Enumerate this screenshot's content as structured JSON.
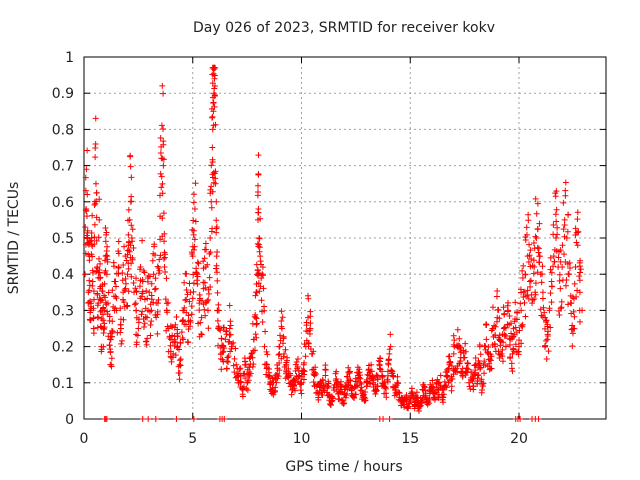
{
  "chart_data": {
    "type": "scatter",
    "title": "Day 026 of 2023, SRMTID for receiver kokv",
    "xlabel": "GPS time / hours",
    "ylabel": "SRMTID / TECUs",
    "xlim": [
      0,
      24
    ],
    "ylim": [
      0,
      1
    ],
    "xticks": [
      0,
      5,
      10,
      15,
      20
    ],
    "xtick_labels": [
      "0",
      "5",
      "10",
      "15",
      "20"
    ],
    "yticks": [
      0,
      0.1,
      0.2,
      0.3,
      0.4,
      0.5,
      0.6,
      0.7,
      0.8,
      0.9,
      1
    ],
    "ytick_labels": [
      "0",
      "0.1",
      "0.2",
      "0.3",
      "0.4",
      "0.5",
      "0.6",
      "0.7",
      "0.8",
      "0.9",
      "1"
    ],
    "grid": true,
    "marker": "+",
    "marker_color": "#ff0000",
    "series": [
      {
        "name": "SRMTID",
        "points": [
          [
            0.05,
            0.4
          ],
          [
            0.1,
            0.58
          ],
          [
            0.15,
            0.62
          ],
          [
            0.2,
            0.35
          ],
          [
            0.25,
            0.45
          ],
          [
            0.3,
            0.3
          ],
          [
            0.35,
            0.5
          ],
          [
            0.4,
            0.38
          ],
          [
            0.45,
            0.25
          ],
          [
            0.5,
            0.6
          ],
          [
            0.55,
            0.65
          ],
          [
            0.6,
            0.42
          ],
          [
            0.65,
            0.28
          ],
          [
            0.7,
            0.55
          ],
          [
            0.75,
            0.33
          ],
          [
            0.8,
            0.2
          ],
          [
            0.85,
            0.37
          ],
          [
            0.9,
            0.25
          ],
          [
            0.95,
            0.3
          ],
          [
            1.0,
            0.45
          ],
          [
            1.05,
            0.4
          ],
          [
            1.1,
            0.32
          ],
          [
            1.2,
            0.22
          ],
          [
            1.25,
            0.15
          ],
          [
            1.3,
            0.27
          ],
          [
            1.4,
            0.38
          ],
          [
            1.5,
            0.3
          ],
          [
            1.6,
            0.42
          ],
          [
            1.7,
            0.25
          ],
          [
            1.8,
            0.35
          ],
          [
            1.9,
            0.45
          ],
          [
            2.0,
            0.4
          ],
          [
            2.05,
            0.48
          ],
          [
            2.1,
            0.55
          ],
          [
            2.15,
            0.6
          ],
          [
            2.2,
            0.5
          ],
          [
            2.3,
            0.35
          ],
          [
            2.4,
            0.3
          ],
          [
            2.5,
            0.25
          ],
          [
            2.6,
            0.42
          ],
          [
            2.7,
            0.38
          ],
          [
            2.8,
            0.33
          ],
          [
            2.9,
            0.28
          ],
          [
            3.0,
            0.35
          ],
          [
            3.1,
            0.3
          ],
          [
            3.2,
            0.4
          ],
          [
            3.3,
            0.36
          ],
          [
            3.4,
            0.32
          ],
          [
            3.5,
            0.56
          ],
          [
            3.55,
            0.64
          ],
          [
            3.6,
            0.72
          ],
          [
            3.65,
            0.7
          ],
          [
            3.7,
            0.42
          ],
          [
            3.8,
            0.3
          ],
          [
            3.9,
            0.25
          ],
          [
            4.0,
            0.22
          ],
          [
            4.1,
            0.18
          ],
          [
            4.2,
            0.26
          ],
          [
            4.3,
            0.2
          ],
          [
            4.4,
            0.15
          ],
          [
            4.5,
            0.24
          ],
          [
            4.6,
            0.3
          ],
          [
            4.7,
            0.33
          ],
          [
            4.8,
            0.27
          ],
          [
            4.9,
            0.35
          ],
          [
            5.0,
            0.45
          ],
          [
            5.05,
            0.52
          ],
          [
            5.1,
            0.58
          ],
          [
            5.2,
            0.4
          ],
          [
            5.3,
            0.32
          ],
          [
            5.4,
            0.28
          ],
          [
            5.5,
            0.36
          ],
          [
            5.6,
            0.42
          ],
          [
            5.7,
            0.3
          ],
          [
            5.8,
            0.5
          ],
          [
            5.85,
            0.6
          ],
          [
            5.9,
            0.75
          ],
          [
            5.92,
            0.8
          ],
          [
            5.95,
            0.85
          ],
          [
            5.97,
            0.9
          ],
          [
            6.0,
            0.94
          ],
          [
            6.02,
            0.92
          ],
          [
            6.05,
            0.65
          ],
          [
            6.1,
            0.45
          ],
          [
            6.15,
            0.3
          ],
          [
            6.2,
            0.25
          ],
          [
            6.3,
            0.18
          ],
          [
            6.4,
            0.2
          ],
          [
            6.5,
            0.22
          ],
          [
            6.6,
            0.17
          ],
          [
            6.7,
            0.25
          ],
          [
            6.8,
            0.2
          ],
          [
            7.0,
            0.15
          ],
          [
            7.1,
            0.1
          ],
          [
            7.2,
            0.12
          ],
          [
            7.3,
            0.08
          ],
          [
            7.4,
            0.15
          ],
          [
            7.5,
            0.1
          ],
          [
            7.6,
            0.13
          ],
          [
            7.7,
            0.18
          ],
          [
            7.8,
            0.22
          ],
          [
            7.9,
            0.28
          ],
          [
            7.95,
            0.35
          ],
          [
            8.0,
            0.55
          ],
          [
            8.02,
            0.58
          ],
          [
            8.05,
            0.5
          ],
          [
            8.1,
            0.45
          ],
          [
            8.2,
            0.4
          ],
          [
            8.3,
            0.2
          ],
          [
            8.4,
            0.15
          ],
          [
            8.5,
            0.12
          ],
          [
            8.6,
            0.1
          ],
          [
            8.7,
            0.08
          ],
          [
            8.8,
            0.11
          ],
          [
            8.9,
            0.14
          ],
          [
            9.0,
            0.2
          ],
          [
            9.1,
            0.25
          ],
          [
            9.2,
            0.18
          ],
          [
            9.3,
            0.15
          ],
          [
            9.4,
            0.12
          ],
          [
            9.5,
            0.1
          ],
          [
            9.6,
            0.08
          ],
          [
            9.7,
            0.11
          ],
          [
            9.8,
            0.14
          ],
          [
            9.9,
            0.12
          ],
          [
            10.0,
            0.1
          ],
          [
            10.1,
            0.15
          ],
          [
            10.2,
            0.2
          ],
          [
            10.3,
            0.28
          ],
          [
            10.4,
            0.25
          ],
          [
            10.5,
            0.18
          ],
          [
            10.6,
            0.12
          ],
          [
            10.7,
            0.09
          ],
          [
            10.8,
            0.07
          ],
          [
            10.9,
            0.1
          ],
          [
            11.0,
            0.08
          ],
          [
            11.1,
            0.12
          ],
          [
            11.2,
            0.09
          ],
          [
            11.3,
            0.06
          ],
          [
            11.4,
            0.05
          ],
          [
            11.5,
            0.08
          ],
          [
            11.6,
            0.11
          ],
          [
            11.7,
            0.07
          ],
          [
            11.8,
            0.09
          ],
          [
            11.9,
            0.05
          ],
          [
            12.0,
            0.07
          ],
          [
            12.1,
            0.1
          ],
          [
            12.2,
            0.13
          ],
          [
            12.3,
            0.08
          ],
          [
            12.4,
            0.06
          ],
          [
            12.5,
            0.09
          ],
          [
            12.6,
            0.12
          ],
          [
            12.7,
            0.1
          ],
          [
            12.8,
            0.07
          ],
          [
            12.9,
            0.05
          ],
          [
            13.0,
            0.09
          ],
          [
            13.1,
            0.12
          ],
          [
            13.2,
            0.15
          ],
          [
            13.3,
            0.1
          ],
          [
            13.4,
            0.08
          ],
          [
            13.5,
            0.11
          ],
          [
            13.6,
            0.14
          ],
          [
            13.7,
            0.12
          ],
          [
            13.8,
            0.09
          ],
          [
            13.9,
            0.06
          ],
          [
            14.0,
            0.15
          ],
          [
            14.1,
            0.2
          ],
          [
            14.2,
            0.12
          ],
          [
            14.3,
            0.08
          ],
          [
            14.4,
            0.1
          ],
          [
            14.5,
            0.06
          ],
          [
            14.6,
            0.05
          ],
          [
            14.7,
            0.04
          ],
          [
            14.8,
            0.06
          ],
          [
            14.9,
            0.03
          ],
          [
            15.0,
            0.05
          ],
          [
            15.1,
            0.07
          ],
          [
            15.2,
            0.04
          ],
          [
            15.3,
            0.06
          ],
          [
            15.4,
            0.03
          ],
          [
            15.5,
            0.05
          ],
          [
            15.6,
            0.08
          ],
          [
            15.7,
            0.06
          ],
          [
            15.8,
            0.04
          ],
          [
            15.9,
            0.07
          ],
          [
            16.0,
            0.09
          ],
          [
            16.1,
            0.06
          ],
          [
            16.2,
            0.1
          ],
          [
            16.3,
            0.08
          ],
          [
            16.4,
            0.12
          ],
          [
            16.5,
            0.06
          ],
          [
            16.6,
            0.09
          ],
          [
            16.7,
            0.12
          ],
          [
            16.8,
            0.15
          ],
          [
            16.9,
            0.11
          ],
          [
            17.0,
            0.18
          ],
          [
            17.1,
            0.14
          ],
          [
            17.2,
            0.2
          ],
          [
            17.3,
            0.16
          ],
          [
            17.4,
            0.12
          ],
          [
            17.5,
            0.17
          ],
          [
            17.6,
            0.14
          ],
          [
            17.7,
            0.1
          ],
          [
            17.8,
            0.13
          ],
          [
            17.9,
            0.09
          ],
          [
            18.0,
            0.15
          ],
          [
            18.1,
            0.12
          ],
          [
            18.2,
            0.2
          ],
          [
            18.3,
            0.08
          ],
          [
            18.4,
            0.16
          ],
          [
            18.5,
            0.22
          ],
          [
            18.6,
            0.18
          ],
          [
            18.7,
            0.14
          ],
          [
            18.8,
            0.25
          ],
          [
            18.9,
            0.2
          ],
          [
            19.0,
            0.28
          ],
          [
            19.1,
            0.22
          ],
          [
            19.2,
            0.18
          ],
          [
            19.3,
            0.25
          ],
          [
            19.4,
            0.2
          ],
          [
            19.5,
            0.3
          ],
          [
            19.6,
            0.22
          ],
          [
            19.7,
            0.18
          ],
          [
            19.8,
            0.27
          ],
          [
            19.9,
            0.24
          ],
          [
            20.0,
            0.2
          ],
          [
            20.1,
            0.3
          ],
          [
            20.2,
            0.35
          ],
          [
            20.3,
            0.4
          ],
          [
            20.4,
            0.45
          ],
          [
            20.5,
            0.38
          ],
          [
            20.6,
            0.32
          ],
          [
            20.7,
            0.42
          ],
          [
            20.8,
            0.5
          ],
          [
            20.9,
            0.46
          ],
          [
            21.0,
            0.4
          ],
          [
            21.1,
            0.35
          ],
          [
            21.2,
            0.28
          ],
          [
            21.3,
            0.22
          ],
          [
            21.4,
            0.3
          ],
          [
            21.5,
            0.38
          ],
          [
            21.6,
            0.45
          ],
          [
            21.7,
            0.5
          ],
          [
            21.8,
            0.42
          ],
          [
            21.9,
            0.36
          ],
          [
            22.0,
            0.48
          ],
          [
            22.1,
            0.55
          ],
          [
            22.2,
            0.5
          ],
          [
            22.3,
            0.4
          ],
          [
            22.4,
            0.32
          ],
          [
            22.5,
            0.25
          ],
          [
            22.6,
            0.42
          ],
          [
            22.7,
            0.48
          ],
          [
            22.8,
            0.35
          ],
          [
            22.9,
            0.3
          ]
        ]
      }
    ],
    "zero_markers_x": [
      0.95,
      1.0,
      1.05,
      2.7,
      2.95,
      3.3,
      4.25,
      5.05,
      6.25,
      6.35,
      6.45,
      13.6,
      13.75,
      14.05,
      19.85,
      19.95,
      20.05,
      20.6,
      20.75,
      20.9
    ]
  }
}
